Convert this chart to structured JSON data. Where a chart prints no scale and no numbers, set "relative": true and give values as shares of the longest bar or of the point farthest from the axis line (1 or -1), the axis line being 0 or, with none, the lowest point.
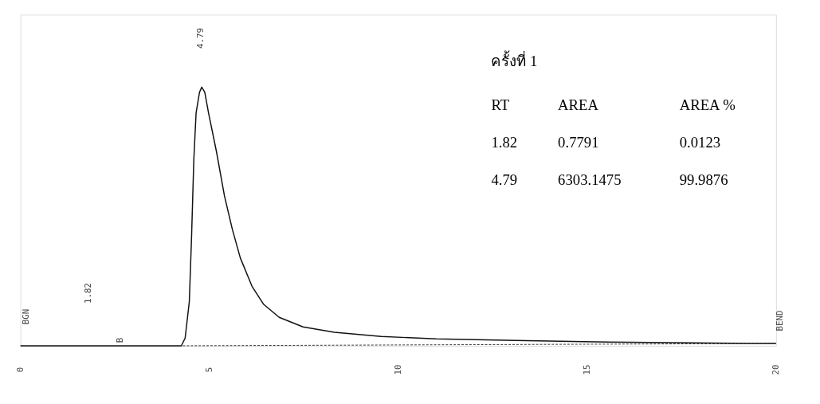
{
  "chart_data": {
    "type": "line",
    "relative": true,
    "xlim": [
      0,
      20
    ],
    "xticks": [
      0,
      5,
      10,
      15,
      20
    ],
    "grid": false,
    "marker": "none",
    "series": [
      {
        "color": "#111111",
        "line_style": "solid",
        "x": [
          0,
          3.2,
          4.26,
          4.36,
          4.47,
          4.53,
          4.59,
          4.65,
          4.74,
          4.8,
          4.88,
          4.98,
          5.19,
          5.4,
          5.61,
          5.82,
          6.13,
          6.44,
          6.85,
          7.48,
          8.31,
          9.55,
          11.0,
          13.1,
          15.2,
          17.2,
          19.3,
          20
        ],
        "values": [
          0,
          0,
          0,
          0.03,
          0.17,
          0.42,
          0.72,
          0.9,
          0.98,
          1,
          0.98,
          0.9,
          0.75,
          0.58,
          0.45,
          0.34,
          0.23,
          0.16,
          0.11,
          0.073,
          0.052,
          0.036,
          0.027,
          0.021,
          0.015,
          0.012,
          0.009,
          0.009
        ]
      },
      {
        "color": "#333333",
        "line_style": "dashed",
        "x": [
          4.3,
          20
        ],
        "values": [
          0,
          0.009
        ]
      }
    ],
    "annotations": [
      "4.79",
      "1.82",
      "BGN",
      "B",
      "BEND",
      "ครั้งที่ 1",
      "RT",
      "AREA",
      "AREA %",
      "1.82",
      "0.7791",
      "0.0123",
      "4.79",
      "6303.1475",
      "99.9876"
    ]
  }
}
